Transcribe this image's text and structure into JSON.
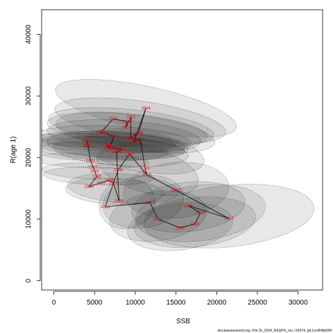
{
  "chart_data": {
    "type": "scatter",
    "xlabel": "SSB",
    "ylabel": "R(age 1)",
    "xlim": [
      -1500,
      33000
    ],
    "ylim": [
      -1500,
      44000
    ],
    "x_ticks": [
      0,
      5000,
      10000,
      15000,
      20000,
      25000,
      30000
    ],
    "y_ticks": [
      0,
      10000,
      20000,
      30000,
      40000
    ],
    "grid": false,
    "colors": {
      "ellipse_fill": "#000000",
      "ellipse_stroke": "#555555",
      "path": "#000000",
      "label": "#ff0000"
    },
    "points": [
      {
        "year": "1980",
        "ssb": 4000,
        "rec": 22800
      },
      {
        "year": "1981",
        "ssb": 4200,
        "rec": 22000
      },
      {
        "year": "1982",
        "ssb": 4500,
        "rec": 19500
      },
      {
        "year": "1983",
        "ssb": 4800,
        "rec": 18500
      },
      {
        "year": "1984",
        "ssb": 5000,
        "rec": 17800
      },
      {
        "year": "1985",
        "ssb": 5300,
        "rec": 16900
      },
      {
        "year": "1986",
        "ssb": 4300,
        "rec": 15300
      },
      {
        "year": "1987",
        "ssb": 5800,
        "rec": 15900
      },
      {
        "year": "1988",
        "ssb": 6800,
        "rec": 16300
      },
      {
        "year": "1989",
        "ssb": 8000,
        "rec": 13000
      },
      {
        "year": "1990",
        "ssb": 7300,
        "rec": 15900
      },
      {
        "year": "1991",
        "ssb": 6800,
        "rec": 21500
      },
      {
        "year": "1992",
        "ssb": 7400,
        "rec": 23400
      },
      {
        "year": "1993",
        "ssb": 6500,
        "rec": 22000
      },
      {
        "year": "1994",
        "ssb": 7700,
        "rec": 20900
      },
      {
        "year": "1995",
        "ssb": 8300,
        "rec": 21300
      },
      {
        "year": "1996",
        "ssb": 7100,
        "rec": 21600
      },
      {
        "year": "1997",
        "ssb": 9300,
        "rec": 20600
      },
      {
        "year": "1998",
        "ssb": 10400,
        "rec": 24000
      },
      {
        "year": "1999",
        "ssb": 9400,
        "rec": 23200
      },
      {
        "year": "2000",
        "ssb": 9000,
        "rec": 25800
      },
      {
        "year": "2001",
        "ssb": 9500,
        "rec": 26600
      },
      {
        "year": "2002",
        "ssb": 9800,
        "rec": 22500
      },
      {
        "year": "2003",
        "ssb": 6100,
        "rec": 24000
      },
      {
        "year": "2004",
        "ssb": 11300,
        "rec": 28000
      },
      {
        "year": "2005",
        "ssb": 10600,
        "rec": 23000
      },
      {
        "year": "2006",
        "ssb": 5800,
        "rec": 24100
      },
      {
        "year": "2007",
        "ssb": 8800,
        "rec": 24800
      },
      {
        "year": "2008",
        "ssb": 7900,
        "rec": 18000
      },
      {
        "year": "2009",
        "ssb": 11200,
        "rec": 18300
      },
      {
        "year": "2010",
        "ssb": 11400,
        "rec": 17200
      },
      {
        "year": "2011",
        "ssb": 7300,
        "rec": 26300
      },
      {
        "year": "2012",
        "ssb": 11800,
        "rec": 12700
      },
      {
        "year": "2013",
        "ssb": 6300,
        "rec": 12000
      },
      {
        "year": "2014",
        "ssb": 12800,
        "rec": 10000
      },
      {
        "year": "2015",
        "ssb": 15000,
        "rec": 14700
      },
      {
        "year": "2016",
        "ssb": 16500,
        "rec": 12200
      },
      {
        "year": "2017",
        "ssb": 21500,
        "rec": 10100
      },
      {
        "year": "2018",
        "ssb": 18000,
        "rec": 11000
      },
      {
        "year": "2019",
        "ssb": 17300,
        "rec": 9200
      },
      {
        "year": "2020",
        "ssb": 15500,
        "rec": 8600
      }
    ],
    "path_order": [
      "1980",
      "1981",
      "1982",
      "1983",
      "1984",
      "1985",
      "1986",
      "1987",
      "1988",
      "1990",
      "1989",
      "1994",
      "1995",
      "1996",
      "1993",
      "1991",
      "1992",
      "2003",
      "2006",
      "2011",
      "2000",
      "2007",
      "2001",
      "1999",
      "1998",
      "2004",
      "2002",
      "2005",
      "2009",
      "2010",
      "1997",
      "2008",
      "2013",
      "2012",
      "2014",
      "2020",
      "2019",
      "2018",
      "2016",
      "2017",
      "2015",
      "2010"
    ],
    "ellipses": [
      {
        "cx": 4000,
        "cy": 22800,
        "rx": 800,
        "ry": 9000,
        "rot": 88
      },
      {
        "cx": 4500,
        "cy": 19500,
        "rx": 900,
        "ry": 9500,
        "rot": 88
      },
      {
        "cx": 5000,
        "cy": 17800,
        "rx": 1000,
        "ry": 8500,
        "rot": 88
      },
      {
        "cx": 5500,
        "cy": 17000,
        "rx": 1100,
        "ry": 9000,
        "rot": 88
      },
      {
        "cx": 5800,
        "cy": 21000,
        "rx": 1200,
        "ry": 11000,
        "rot": 89
      },
      {
        "cx": 6200,
        "cy": 22500,
        "rx": 1300,
        "ry": 11500,
        "rot": 88
      },
      {
        "cx": 6600,
        "cy": 21500,
        "rx": 1400,
        "ry": 12500,
        "rot": 88
      },
      {
        "cx": 7000,
        "cy": 22000,
        "rx": 1500,
        "ry": 12000,
        "rot": 88
      },
      {
        "cx": 7400,
        "cy": 23000,
        "rx": 1600,
        "ry": 12500,
        "rot": 87
      },
      {
        "cx": 7800,
        "cy": 22000,
        "rx": 1700,
        "ry": 11500,
        "rot": 87
      },
      {
        "cx": 8200,
        "cy": 21000,
        "rx": 1800,
        "ry": 11000,
        "rot": 86
      },
      {
        "cx": 8600,
        "cy": 23500,
        "rx": 1900,
        "ry": 12500,
        "rot": 86
      },
      {
        "cx": 9000,
        "cy": 24500,
        "rx": 2000,
        "ry": 13000,
        "rot": 85
      },
      {
        "cx": 9500,
        "cy": 25000,
        "rx": 2100,
        "ry": 13500,
        "rot": 84
      },
      {
        "cx": 10000,
        "cy": 24000,
        "rx": 2200,
        "ry": 13000,
        "rot": 83
      },
      {
        "cx": 10600,
        "cy": 26000,
        "rx": 2400,
        "ry": 14000,
        "rot": 82
      },
      {
        "cx": 11300,
        "cy": 28000,
        "rx": 2700,
        "ry": 15000,
        "rot": 78
      },
      {
        "cx": 11000,
        "cy": 21000,
        "rx": 2500,
        "ry": 10000,
        "rot": 80
      },
      {
        "cx": 11500,
        "cy": 18000,
        "rx": 2800,
        "ry": 8500,
        "rot": 75
      },
      {
        "cx": 8500,
        "cy": 15000,
        "rx": 1800,
        "ry": 9000,
        "rot": 86
      },
      {
        "cx": 7500,
        "cy": 14500,
        "rx": 1600,
        "ry": 8000,
        "rot": 87
      },
      {
        "cx": 9000,
        "cy": 12500,
        "rx": 3500,
        "ry": 4000,
        "rot": 20
      },
      {
        "cx": 11000,
        "cy": 12800,
        "rx": 5000,
        "ry": 4200,
        "rot": 10
      },
      {
        "cx": 12800,
        "cy": 10500,
        "rx": 6000,
        "ry": 4000,
        "rot": 8
      },
      {
        "cx": 15000,
        "cy": 14700,
        "rx": 6500,
        "ry": 4500,
        "rot": 5
      },
      {
        "cx": 16500,
        "cy": 12000,
        "rx": 7000,
        "ry": 4000,
        "rot": 6
      },
      {
        "cx": 17300,
        "cy": 9500,
        "rx": 7500,
        "ry": 4000,
        "rot": 6
      },
      {
        "cx": 18000,
        "cy": 11000,
        "rx": 8000,
        "ry": 4500,
        "rot": 7
      },
      {
        "cx": 21500,
        "cy": 10500,
        "rx": 10500,
        "ry": 5000,
        "rot": 6
      },
      {
        "cx": 15500,
        "cy": 8800,
        "rx": 6500,
        "ry": 3800,
        "rot": 7
      }
    ]
  },
  "footer_text": "stockassessment.org, File.To_2024_NSQPS_rev, r19074, git:1cc464b606f"
}
